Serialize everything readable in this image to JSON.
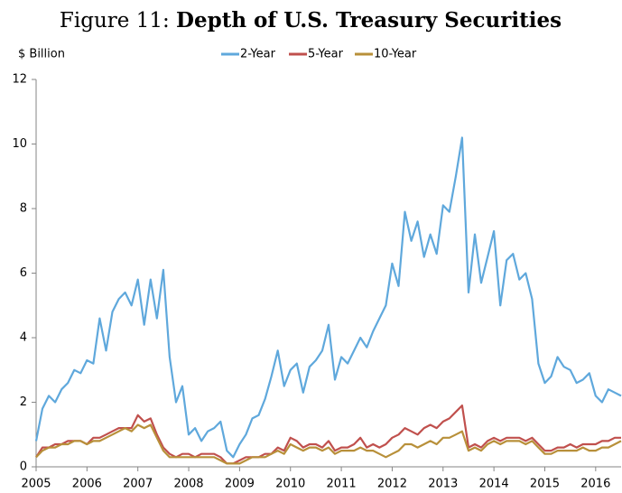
{
  "chart_data": {
    "type": "line",
    "figure_label": "Figure 11:",
    "title": "Depth of U.S. Treasury Securities",
    "ylabel": "$ Billion",
    "x": [
      2005,
      2005.125,
      2005.25,
      2005.375,
      2005.5,
      2005.625,
      2005.75,
      2005.875,
      2006,
      2006.125,
      2006.25,
      2006.375,
      2006.5,
      2006.625,
      2006.75,
      2006.875,
      2007,
      2007.125,
      2007.25,
      2007.375,
      2007.5,
      2007.625,
      2007.75,
      2007.875,
      2008,
      2008.125,
      2008.25,
      2008.375,
      2008.5,
      2008.625,
      2008.75,
      2008.875,
      2009,
      2009.125,
      2009.25,
      2009.375,
      2009.5,
      2009.625,
      2009.75,
      2009.875,
      2010,
      2010.125,
      2010.25,
      2010.375,
      2010.5,
      2010.625,
      2010.75,
      2010.875,
      2011,
      2011.125,
      2011.25,
      2011.375,
      2011.5,
      2011.625,
      2011.75,
      2011.875,
      2012,
      2012.125,
      2012.25,
      2012.375,
      2012.5,
      2012.625,
      2012.75,
      2012.875,
      2013,
      2013.125,
      2013.25,
      2013.375,
      2013.5,
      2013.625,
      2013.75,
      2013.875,
      2014,
      2014.125,
      2014.25,
      2014.375,
      2014.5,
      2014.625,
      2014.75,
      2014.875,
      2015,
      2015.125,
      2015.25,
      2015.375,
      2015.5,
      2015.625,
      2015.75,
      2015.875,
      2016,
      2016.125,
      2016.25,
      2016.375,
      2016.5
    ],
    "series": [
      {
        "name": "2-Year",
        "color": "#5fa8dc",
        "values": [
          0.8,
          1.8,
          2.2,
          2.0,
          2.4,
          2.6,
          3.0,
          2.9,
          3.3,
          3.2,
          4.6,
          3.6,
          4.8,
          5.2,
          5.4,
          5.0,
          5.8,
          4.4,
          5.8,
          4.6,
          6.1,
          3.4,
          2.0,
          2.5,
          1.0,
          1.2,
          0.8,
          1.1,
          1.2,
          1.4,
          0.5,
          0.3,
          0.7,
          1.0,
          1.5,
          1.6,
          2.1,
          2.8,
          3.6,
          2.5,
          3.0,
          3.2,
          2.3,
          3.1,
          3.3,
          3.6,
          4.4,
          2.7,
          3.4,
          3.2,
          3.6,
          4.0,
          3.7,
          4.2,
          4.6,
          5.0,
          6.3,
          5.6,
          7.9,
          7.0,
          7.6,
          6.5,
          7.2,
          6.6,
          8.1,
          7.9,
          9.0,
          10.2,
          5.4,
          7.2,
          5.7,
          6.5,
          7.3,
          5.0,
          6.4,
          6.6,
          5.8,
          6.0,
          5.2,
          3.2,
          2.6,
          2.8,
          3.4,
          3.1,
          3.0,
          2.6,
          2.7,
          2.9,
          2.2,
          2.0,
          2.4,
          2.3,
          2.2
        ]
      },
      {
        "name": "5-Year",
        "color": "#c0504d",
        "values": [
          0.3,
          0.6,
          0.6,
          0.7,
          0.7,
          0.8,
          0.8,
          0.8,
          0.7,
          0.9,
          0.9,
          1.0,
          1.1,
          1.2,
          1.2,
          1.2,
          1.6,
          1.4,
          1.5,
          1.0,
          0.6,
          0.4,
          0.3,
          0.4,
          0.4,
          0.3,
          0.4,
          0.4,
          0.4,
          0.3,
          0.1,
          0.1,
          0.2,
          0.3,
          0.3,
          0.3,
          0.4,
          0.4,
          0.6,
          0.5,
          0.9,
          0.8,
          0.6,
          0.7,
          0.7,
          0.6,
          0.8,
          0.5,
          0.6,
          0.6,
          0.7,
          0.9,
          0.6,
          0.7,
          0.6,
          0.7,
          0.9,
          1.0,
          1.2,
          1.1,
          1.0,
          1.2,
          1.3,
          1.2,
          1.4,
          1.5,
          1.7,
          1.9,
          0.6,
          0.7,
          0.6,
          0.8,
          0.9,
          0.8,
          0.9,
          0.9,
          0.9,
          0.8,
          0.9,
          0.7,
          0.5,
          0.5,
          0.6,
          0.6,
          0.7,
          0.6,
          0.7,
          0.7,
          0.7,
          0.8,
          0.8,
          0.9,
          0.9
        ]
      },
      {
        "name": "10-Year",
        "color": "#b8903a",
        "values": [
          0.3,
          0.5,
          0.6,
          0.6,
          0.7,
          0.7,
          0.8,
          0.8,
          0.7,
          0.8,
          0.8,
          0.9,
          1.0,
          1.1,
          1.2,
          1.1,
          1.3,
          1.2,
          1.3,
          0.9,
          0.5,
          0.3,
          0.3,
          0.3,
          0.3,
          0.3,
          0.3,
          0.3,
          0.3,
          0.2,
          0.1,
          0.1,
          0.1,
          0.2,
          0.3,
          0.3,
          0.3,
          0.4,
          0.5,
          0.4,
          0.7,
          0.6,
          0.5,
          0.6,
          0.6,
          0.5,
          0.6,
          0.4,
          0.5,
          0.5,
          0.5,
          0.6,
          0.5,
          0.5,
          0.4,
          0.3,
          0.4,
          0.5,
          0.7,
          0.7,
          0.6,
          0.7,
          0.8,
          0.7,
          0.9,
          0.9,
          1.0,
          1.1,
          0.5,
          0.6,
          0.5,
          0.7,
          0.8,
          0.7,
          0.8,
          0.8,
          0.8,
          0.7,
          0.8,
          0.6,
          0.4,
          0.4,
          0.5,
          0.5,
          0.5,
          0.5,
          0.6,
          0.5,
          0.5,
          0.6,
          0.6,
          0.7,
          0.8
        ]
      }
    ],
    "xlim": [
      2005,
      2016.5
    ],
    "xticks": [
      2005,
      2006,
      2007,
      2008,
      2009,
      2010,
      2011,
      2012,
      2013,
      2014,
      2015,
      2016
    ],
    "ylim": [
      0,
      12
    ],
    "yticks": [
      0,
      2,
      4,
      6,
      8,
      10,
      12
    ],
    "grid": false,
    "legend": "top"
  }
}
